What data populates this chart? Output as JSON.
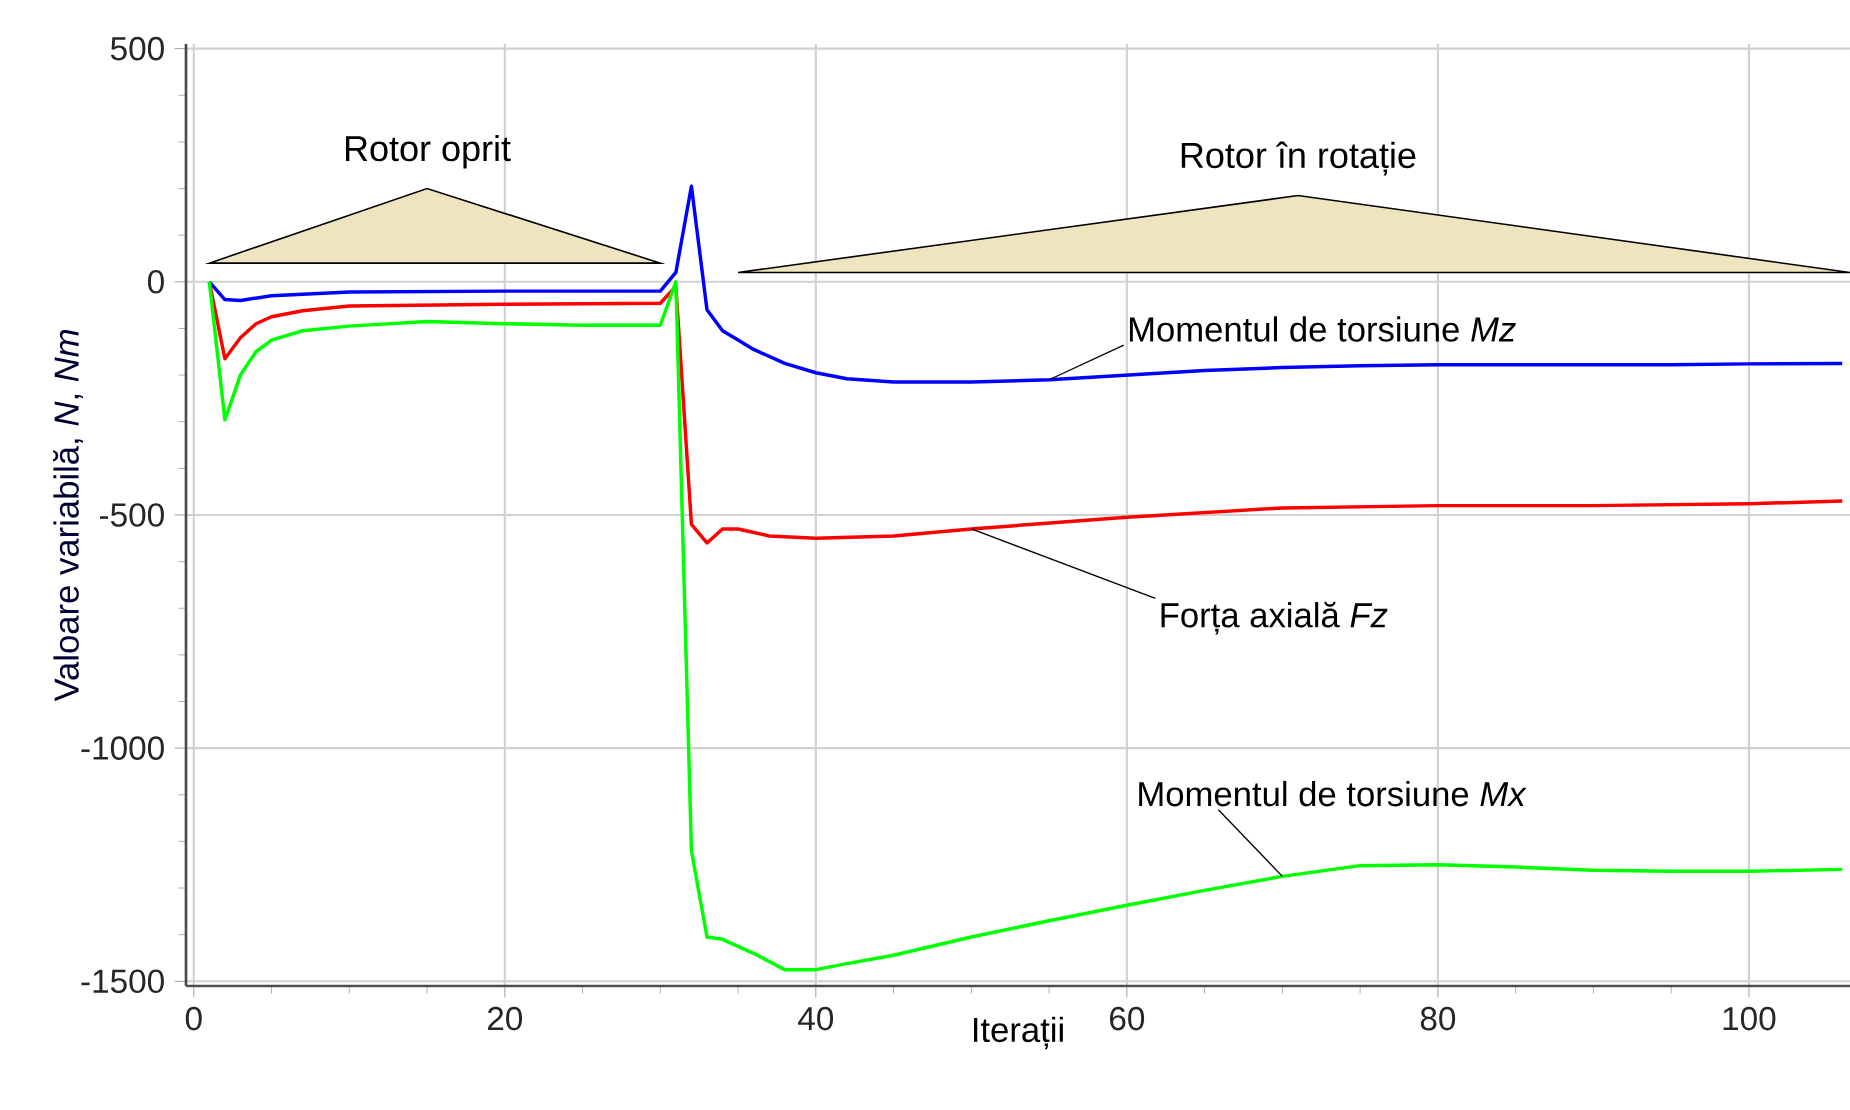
{
  "chart_data": {
    "type": "line",
    "xlabel": "Iterații",
    "ylabel": "Valoare variabilă, *N*, *Nm*",
    "xlim": [
      -0.5,
      106.5
    ],
    "ylim": [
      -1510,
      510
    ],
    "xticks": [
      0,
      20,
      40,
      60,
      80,
      100
    ],
    "yticks": [
      -1500,
      -1000,
      -500,
      0,
      500
    ],
    "grid": true,
    "annotations": [
      "Rotor oprit",
      "Rotor în rotație"
    ],
    "series": [
      {
        "name": "Momentul de torsiune *Mz*",
        "color": "#0000ff",
        "x": [
          1,
          2,
          3,
          5,
          10,
          20,
          30,
          31,
          32,
          33,
          34,
          35,
          36,
          38,
          40,
          42,
          45,
          50,
          55,
          60,
          65,
          70,
          75,
          80,
          85,
          90,
          95,
          100,
          106
        ],
        "values": [
          0,
          -38,
          -40,
          -30,
          -22,
          -20,
          -20,
          20,
          205,
          -60,
          -105,
          -125,
          -145,
          -175,
          -195,
          -208,
          -215,
          -215,
          -210,
          -200,
          -190,
          -184,
          -180,
          -178,
          -178,
          -178,
          -178,
          -176,
          -175
        ]
      },
      {
        "name": "Forța axială *Fz*",
        "color": "#ff0000",
        "x": [
          1,
          2,
          3,
          4,
          5,
          7,
          10,
          20,
          30,
          31,
          32,
          33,
          34,
          35,
          37,
          40,
          45,
          50,
          60,
          70,
          80,
          90,
          100,
          106
        ],
        "values": [
          0,
          -165,
          -120,
          -90,
          -75,
          -62,
          -52,
          -48,
          -46,
          -10,
          -520,
          -560,
          -530,
          -530,
          -545,
          -550,
          -545,
          -530,
          -505,
          -485,
          -480,
          -480,
          -476,
          -470
        ]
      },
      {
        "name": "Momentul de torsiune *Mx*",
        "color": "#00ff00",
        "x": [
          1,
          2,
          3,
          4,
          5,
          7,
          10,
          15,
          20,
          25,
          30,
          31,
          32,
          33,
          34,
          36,
          38,
          40,
          42,
          45,
          50,
          55,
          60,
          65,
          70,
          75,
          80,
          85,
          90,
          95,
          100,
          106
        ],
        "values": [
          0,
          -296,
          -200,
          -150,
          -125,
          -105,
          -95,
          -85,
          -90,
          -93,
          -93,
          0,
          -1220,
          -1405,
          -1410,
          -1440,
          -1475,
          -1475,
          -1462,
          -1444,
          -1405,
          -1370,
          -1337,
          -1305,
          -1275,
          -1252,
          -1250,
          -1255,
          -1262,
          -1264,
          -1264,
          -1260
        ]
      }
    ]
  }
}
